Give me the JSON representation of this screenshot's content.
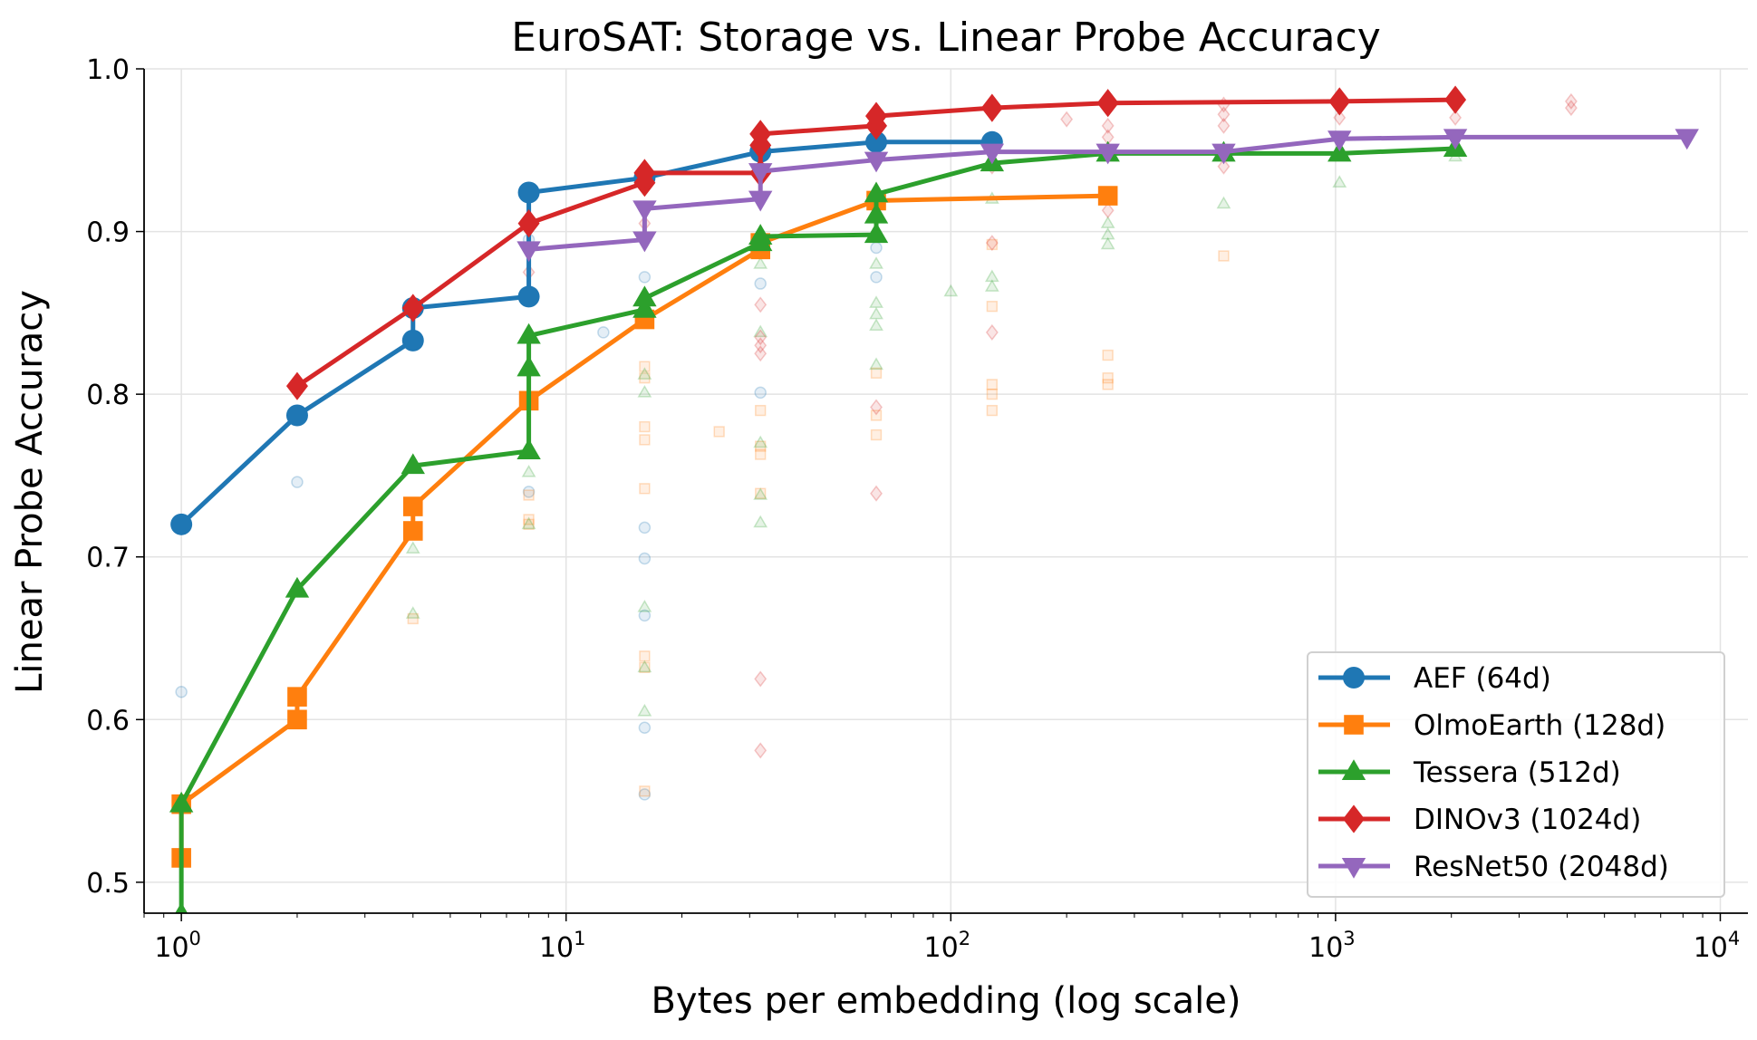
{
  "chart_data": {
    "type": "line",
    "title": "EuroSAT: Storage vs. Linear Probe Accuracy",
    "xlabel": "Bytes per embedding (log scale)",
    "ylabel": "Linear Probe Accuracy",
    "xscale": "log",
    "xlim": [
      0.8,
      11800
    ],
    "ylim": [
      0.481,
      1.0
    ],
    "xticks": [
      {
        "value": 1,
        "base": "10",
        "exp": "0"
      },
      {
        "value": 10,
        "base": "10",
        "exp": "1"
      },
      {
        "value": 100,
        "base": "10",
        "exp": "2"
      },
      {
        "value": 1000,
        "base": "10",
        "exp": "3"
      },
      {
        "value": 10000,
        "base": "10",
        "exp": "4"
      }
    ],
    "yticks": [
      {
        "value": 0.5,
        "label": "0.5"
      },
      {
        "value": 0.6,
        "label": "0.6"
      },
      {
        "value": 0.7,
        "label": "0.7"
      },
      {
        "value": 0.8,
        "label": "0.8"
      },
      {
        "value": 0.9,
        "label": "0.9"
      },
      {
        "value": 1.0,
        "label": "1.0"
      }
    ],
    "grid": true,
    "legend_position": "lower-right",
    "series": [
      {
        "name": "AEF (64d)",
        "color": "#1f77b4",
        "marker": "circle",
        "points": [
          [
            1,
            0.72
          ],
          [
            2,
            0.787
          ],
          [
            4,
            0.833
          ],
          [
            4,
            0.853
          ],
          [
            8,
            0.86
          ],
          [
            8,
            0.924
          ],
          [
            16,
            0.933
          ],
          [
            32,
            0.949
          ],
          [
            64,
            0.955
          ],
          [
            128,
            0.955
          ]
        ],
        "background_points": [
          [
            1,
            0.617
          ],
          [
            2,
            0.746
          ],
          [
            8,
            0.74
          ],
          [
            8,
            0.895
          ],
          [
            12.5,
            0.838
          ],
          [
            16,
            0.872
          ],
          [
            16,
            0.718
          ],
          [
            16,
            0.699
          ],
          [
            16,
            0.664
          ],
          [
            16,
            0.595
          ],
          [
            16,
            0.554
          ],
          [
            32,
            0.868
          ],
          [
            32,
            0.801
          ],
          [
            64,
            0.872
          ],
          [
            64,
            0.89
          ]
        ]
      },
      {
        "name": "OlmoEarth (128d)",
        "color": "#ff7f0e",
        "marker": "square",
        "points": [
          [
            1,
            0.515
          ],
          [
            1,
            0.548
          ],
          [
            2,
            0.6
          ],
          [
            2,
            0.614
          ],
          [
            4,
            0.716
          ],
          [
            4,
            0.731
          ],
          [
            8,
            0.796
          ],
          [
            16,
            0.846
          ],
          [
            32,
            0.889
          ],
          [
            32,
            0.893
          ],
          [
            64,
            0.919
          ],
          [
            256,
            0.922
          ]
        ],
        "background_points": [
          [
            4,
            0.662
          ],
          [
            8,
            0.72
          ],
          [
            8,
            0.723
          ],
          [
            8,
            0.738
          ],
          [
            16,
            0.817
          ],
          [
            16,
            0.81
          ],
          [
            16,
            0.78
          ],
          [
            16,
            0.772
          ],
          [
            16,
            0.742
          ],
          [
            16,
            0.639
          ],
          [
            16,
            0.632
          ],
          [
            16,
            0.556
          ],
          [
            25,
            0.777
          ],
          [
            32,
            0.79
          ],
          [
            32,
            0.768
          ],
          [
            32,
            0.763
          ],
          [
            32,
            0.739
          ],
          [
            64,
            0.813
          ],
          [
            64,
            0.787
          ],
          [
            64,
            0.775
          ],
          [
            128,
            0.854
          ],
          [
            128,
            0.806
          ],
          [
            128,
            0.8
          ],
          [
            128,
            0.79
          ],
          [
            128,
            0.892
          ],
          [
            256,
            0.824
          ],
          [
            256,
            0.81
          ],
          [
            256,
            0.806
          ],
          [
            512,
            0.885
          ]
        ]
      },
      {
        "name": "Tessera (512d)",
        "color": "#2ca02c",
        "marker": "triangle-up",
        "points": [
          [
            1,
            0.48
          ],
          [
            1,
            0.548
          ],
          [
            2,
            0.68
          ],
          [
            4,
            0.756
          ],
          [
            8,
            0.765
          ],
          [
            8,
            0.816
          ],
          [
            8,
            0.836
          ],
          [
            16,
            0.852
          ],
          [
            16,
            0.859
          ],
          [
            32,
            0.893
          ],
          [
            32,
            0.897
          ],
          [
            64,
            0.898
          ],
          [
            64,
            0.91
          ],
          [
            64,
            0.923
          ],
          [
            128,
            0.942
          ],
          [
            256,
            0.948
          ],
          [
            512,
            0.948
          ],
          [
            1024,
            0.948
          ],
          [
            2048,
            0.951
          ]
        ],
        "background_points": [
          [
            4,
            0.705
          ],
          [
            4,
            0.665
          ],
          [
            8,
            0.752
          ],
          [
            8,
            0.72
          ],
          [
            16,
            0.812
          ],
          [
            16,
            0.801
          ],
          [
            16,
            0.669
          ],
          [
            16,
            0.632
          ],
          [
            16,
            0.605
          ],
          [
            32,
            0.88
          ],
          [
            32,
            0.838
          ],
          [
            32,
            0.77
          ],
          [
            32,
            0.738
          ],
          [
            32,
            0.721
          ],
          [
            64,
            0.88
          ],
          [
            64,
            0.856
          ],
          [
            64,
            0.849
          ],
          [
            64,
            0.842
          ],
          [
            64,
            0.818
          ],
          [
            100,
            0.863
          ],
          [
            128,
            0.92
          ],
          [
            128,
            0.872
          ],
          [
            128,
            0.866
          ],
          [
            256,
            0.905
          ],
          [
            256,
            0.898
          ],
          [
            256,
            0.892
          ],
          [
            512,
            0.917
          ],
          [
            1024,
            0.93
          ],
          [
            2048,
            0.946
          ]
        ]
      },
      {
        "name": "DINOv3 (1024d)",
        "color": "#d62728",
        "marker": "diamond",
        "points": [
          [
            2,
            0.805
          ],
          [
            4,
            0.853
          ],
          [
            8,
            0.905
          ],
          [
            16,
            0.93
          ],
          [
            16,
            0.936
          ],
          [
            32,
            0.936
          ],
          [
            32,
            0.953
          ],
          [
            32,
            0.96
          ],
          [
            64,
            0.965
          ],
          [
            64,
            0.971
          ],
          [
            128,
            0.976
          ],
          [
            256,
            0.979
          ],
          [
            1024,
            0.98
          ],
          [
            2048,
            0.981
          ]
        ],
        "background_points": [
          [
            8,
            0.875
          ],
          [
            16,
            0.905
          ],
          [
            32,
            0.855
          ],
          [
            32,
            0.835
          ],
          [
            32,
            0.83
          ],
          [
            32,
            0.825
          ],
          [
            32,
            0.625
          ],
          [
            32,
            0.581
          ],
          [
            64,
            0.792
          ],
          [
            64,
            0.739
          ],
          [
            128,
            0.893
          ],
          [
            128,
            0.838
          ],
          [
            128,
            0.94
          ],
          [
            200,
            0.969
          ],
          [
            256,
            0.965
          ],
          [
            256,
            0.958
          ],
          [
            256,
            0.913
          ],
          [
            512,
            0.978
          ],
          [
            512,
            0.972
          ],
          [
            512,
            0.965
          ],
          [
            512,
            0.94
          ],
          [
            1024,
            0.97
          ],
          [
            2048,
            0.97
          ],
          [
            4096,
            0.98
          ],
          [
            4096,
            0.976
          ]
        ]
      },
      {
        "name": "ResNet50 (2048d)",
        "color": "#9467bd",
        "marker": "triangle-down",
        "points": [
          [
            8,
            0.889
          ],
          [
            16,
            0.895
          ],
          [
            16,
            0.914
          ],
          [
            32,
            0.92
          ],
          [
            32,
            0.937
          ],
          [
            64,
            0.944
          ],
          [
            128,
            0.949
          ],
          [
            256,
            0.949
          ],
          [
            512,
            0.949
          ],
          [
            1024,
            0.957
          ],
          [
            2048,
            0.958
          ],
          [
            8192,
            0.958
          ]
        ],
        "background_points": []
      }
    ]
  }
}
